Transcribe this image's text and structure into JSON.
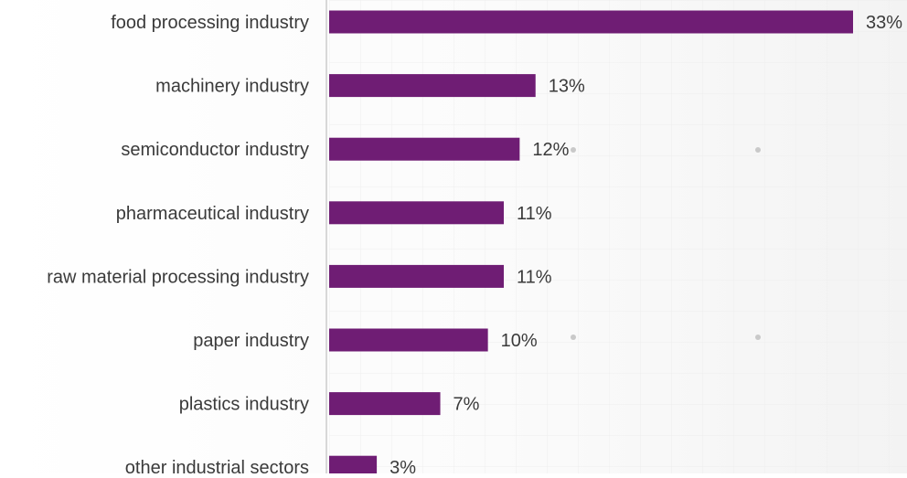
{
  "chart_data": {
    "type": "bar",
    "orientation": "horizontal",
    "categories": [
      "food processing industry",
      "machinery industry",
      "semiconductor industry",
      "pharmaceutical industry",
      "raw material processing industry",
      "paper industry",
      "plastics industry",
      "other industrial sectors"
    ],
    "values": [
      33,
      13,
      12,
      11,
      11,
      10,
      7,
      3
    ],
    "value_labels": [
      "33%",
      "13%",
      "12%",
      "11%",
      "11%",
      "10%",
      "7%",
      "3%"
    ],
    "unit": "%",
    "xlim": [
      0,
      33
    ],
    "grid": true,
    "bar_color": "#6f1d74",
    "label_color": "#3a3a3a",
    "axis_color": "#d8d8d8",
    "grid_color": "#f1f1f1"
  }
}
